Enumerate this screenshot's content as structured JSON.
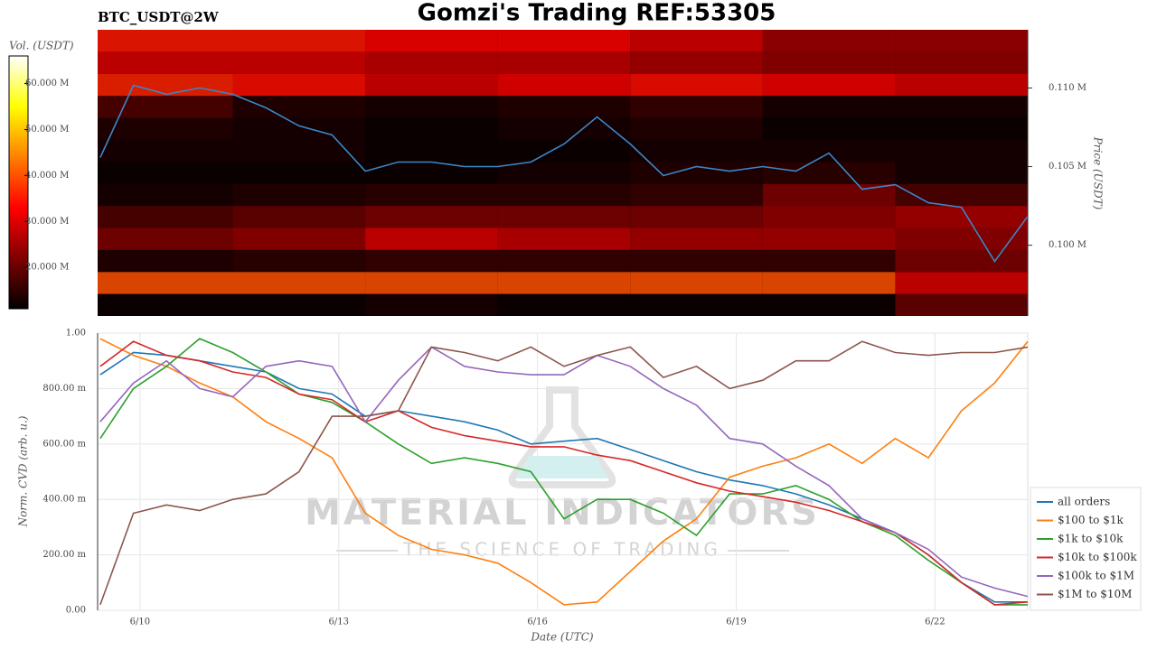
{
  "chart_data": [
    {
      "type": "heatmap",
      "title": "Gomzi's Trading REF:53305",
      "subtitle": "BTC_USDT@2W",
      "ylabel": "Price (USDT)",
      "xlim": [
        9.36,
        23.4
      ],
      "ylim": [
        95500,
        113700
      ],
      "yticks": [
        {
          "value": 100000,
          "label": "0.100 M"
        },
        {
          "value": 105000,
          "label": "0.105 M"
        },
        {
          "value": 110000,
          "label": "0.110 M"
        }
      ],
      "time_bins": [
        9.36,
        11.4,
        13.4,
        15.4,
        17.4,
        19.4,
        21.4,
        23.4
      ],
      "price_bins": [
        95500,
        96900,
        98300,
        99700,
        101100,
        102500,
        103900,
        105300,
        106700,
        108100,
        109500,
        110900,
        112300,
        113700
      ],
      "volumes": [
        [
          12000000,
          12000000,
          13000000,
          12000000,
          12000000,
          12000000,
          20000000
        ],
        [
          40000000,
          40000000,
          40000000,
          40000000,
          40000000,
          40000000,
          30000000
        ],
        [
          14000000,
          15000000,
          16000000,
          16000000,
          16000000,
          16000000,
          22000000
        ],
        [
          22000000,
          24000000,
          30000000,
          28000000,
          26000000,
          26000000,
          24000000
        ],
        [
          18000000,
          20000000,
          22000000,
          22000000,
          22000000,
          24000000,
          26000000
        ],
        [
          13000000,
          14000000,
          15000000,
          15000000,
          16000000,
          22000000,
          18000000
        ],
        [
          12000000,
          12000000,
          12000000,
          13000000,
          14000000,
          15000000,
          13000000
        ],
        [
          13000000,
          13000000,
          12000000,
          12000000,
          13000000,
          13000000,
          13000000
        ],
        [
          14000000,
          13000000,
          12000000,
          13000000,
          14000000,
          12000000,
          12000000
        ],
        [
          18000000,
          14000000,
          13000000,
          14000000,
          16000000,
          13000000,
          13000000
        ],
        [
          36000000,
          34000000,
          30000000,
          32000000,
          34000000,
          32000000,
          30000000
        ],
        [
          30000000,
          30000000,
          28000000,
          28000000,
          26000000,
          24000000,
          24000000
        ],
        [
          35000000,
          35000000,
          33000000,
          33000000,
          30000000,
          25000000,
          25000000
        ]
      ],
      "colorbar": {
        "label": "Vol. (USDT)",
        "lim": [
          11000000,
          66000000
        ],
        "ticks": [
          {
            "value": 20000000,
            "label": "20.000 M"
          },
          {
            "value": 30000000,
            "label": "30.000 M"
          },
          {
            "value": 40000000,
            "label": "40.000 M"
          },
          {
            "value": 50000000,
            "label": "50.000 M"
          },
          {
            "value": 60000000,
            "label": "60.000 M"
          }
        ]
      },
      "x": [
        9.4,
        9.9,
        10.4,
        10.9,
        11.4,
        11.9,
        12.4,
        12.9,
        13.4,
        13.9,
        14.4,
        14.9,
        15.4,
        15.9,
        16.4,
        16.9,
        17.4,
        17.9,
        18.4,
        18.9,
        19.4,
        19.9,
        20.4,
        20.9,
        21.4,
        21.9,
        22.4,
        22.9,
        23.4
      ],
      "price": {
        "color": "#3a86c8",
        "values": [
          105575,
          110170,
          109600,
          110000,
          109600,
          108740,
          107590,
          107010,
          104710,
          105290,
          105290,
          105000,
          105000,
          105290,
          106440,
          108160,
          106440,
          104430,
          105000,
          104710,
          105000,
          104710,
          105860,
          103560,
          103850,
          102700,
          102410,
          98970,
          101840
        ]
      }
    },
    {
      "type": "line",
      "xlabel": "Date (UTC)",
      "ylabel": "Norm. CVD (arb. u.)",
      "xlim": [
        9.36,
        23.4
      ],
      "ylim": [
        0,
        1
      ],
      "xticks": [
        {
          "value": 10,
          "label": "6/10"
        },
        {
          "value": 13,
          "label": "6/13"
        },
        {
          "value": 16,
          "label": "6/16"
        },
        {
          "value": 19,
          "label": "6/19"
        },
        {
          "value": 22,
          "label": "6/22"
        }
      ],
      "yticks": [
        {
          "value": 0,
          "label": "0.00"
        },
        {
          "value": 0.2,
          "label": "200.00 m"
        },
        {
          "value": 0.4,
          "label": "400.00 m"
        },
        {
          "value": 0.6,
          "label": "600.00 m"
        },
        {
          "value": 0.8,
          "label": "800.00 m"
        },
        {
          "value": 1,
          "label": "1.00"
        }
      ],
      "grid": true,
      "legend": "lower right",
      "watermark": {
        "title": "MATERIAL INDICATORS",
        "subtitle": "THE SCIENCE OF TRADING"
      },
      "x": [
        9.4,
        9.9,
        10.4,
        10.9,
        11.4,
        11.9,
        12.4,
        12.9,
        13.4,
        13.9,
        14.4,
        14.9,
        15.4,
        15.9,
        16.4,
        16.9,
        17.4,
        17.9,
        18.4,
        18.9,
        19.4,
        19.9,
        20.4,
        20.9,
        21.4,
        21.9,
        22.4,
        22.9,
        23.4
      ],
      "series": [
        {
          "name": "all orders",
          "color": "#1f77b4",
          "values": [
            0.85,
            0.93,
            0.92,
            0.9,
            0.88,
            0.86,
            0.8,
            0.78,
            0.7,
            0.72,
            0.7,
            0.68,
            0.65,
            0.6,
            0.61,
            0.62,
            0.58,
            0.54,
            0.5,
            0.47,
            0.45,
            0.42,
            0.38,
            0.33,
            0.28,
            0.2,
            0.1,
            0.03,
            0.03
          ]
        },
        {
          "name": "$100 to $1k",
          "color": "#ff7f0e",
          "values": [
            0.98,
            0.92,
            0.88,
            0.82,
            0.77,
            0.68,
            0.62,
            0.55,
            0.35,
            0.27,
            0.22,
            0.2,
            0.17,
            0.1,
            0.02,
            0.03,
            0.14,
            0.25,
            0.33,
            0.48,
            0.52,
            0.55,
            0.6,
            0.53,
            0.62,
            0.55,
            0.72,
            0.82,
            0.97
          ]
        },
        {
          "name": "$1k to $10k",
          "color": "#2ca02c",
          "values": [
            0.62,
            0.8,
            0.88,
            0.98,
            0.93,
            0.86,
            0.78,
            0.75,
            0.68,
            0.6,
            0.53,
            0.55,
            0.53,
            0.5,
            0.33,
            0.4,
            0.4,
            0.35,
            0.27,
            0.42,
            0.42,
            0.45,
            0.4,
            0.32,
            0.27,
            0.18,
            0.1,
            0.02,
            0.02
          ]
        },
        {
          "name": "$10k to $100k",
          "color": "#d62728",
          "values": [
            0.88,
            0.97,
            0.92,
            0.9,
            0.86,
            0.84,
            0.78,
            0.76,
            0.68,
            0.72,
            0.66,
            0.63,
            0.61,
            0.59,
            0.59,
            0.56,
            0.54,
            0.5,
            0.46,
            0.43,
            0.41,
            0.39,
            0.36,
            0.32,
            0.28,
            0.2,
            0.1,
            0.02,
            0.03
          ]
        },
        {
          "name": "$100k to $1M",
          "color": "#9467bd",
          "values": [
            0.68,
            0.82,
            0.9,
            0.8,
            0.77,
            0.88,
            0.9,
            0.88,
            0.68,
            0.83,
            0.95,
            0.88,
            0.86,
            0.85,
            0.85,
            0.92,
            0.88,
            0.8,
            0.74,
            0.62,
            0.6,
            0.52,
            0.45,
            0.33,
            0.28,
            0.22,
            0.12,
            0.08,
            0.05
          ]
        },
        {
          "name": "$1M to $10M",
          "color": "#8c564b",
          "values": [
            0.02,
            0.35,
            0.38,
            0.36,
            0.4,
            0.42,
            0.5,
            0.7,
            0.7,
            0.72,
            0.95,
            0.93,
            0.9,
            0.95,
            0.88,
            0.92,
            0.95,
            0.84,
            0.88,
            0.8,
            0.83,
            0.9,
            0.9,
            0.97,
            0.93,
            0.92,
            0.93,
            0.93,
            0.95
          ]
        }
      ]
    }
  ]
}
